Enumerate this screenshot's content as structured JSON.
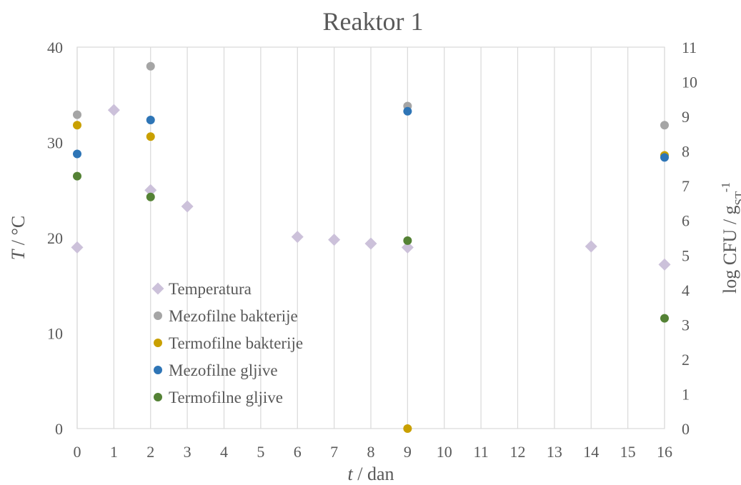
{
  "chart_data": {
    "type": "scatter",
    "title": "Reaktor 1",
    "xlabel": {
      "var": "t",
      "rest": " / dan"
    },
    "ylabel_left": {
      "var": "T",
      "rest": " / °C"
    },
    "ylabel_right": {
      "main": "log CFU / g",
      "sub": "ST",
      "sup": "-1"
    },
    "x_ticks": [
      0,
      1,
      2,
      3,
      4,
      5,
      6,
      7,
      8,
      9,
      10,
      11,
      12,
      13,
      14,
      15,
      16
    ],
    "xlim": [
      0,
      16
    ],
    "y_left_ticks": [
      0,
      10,
      20,
      30,
      40
    ],
    "ylim_left": [
      0,
      40
    ],
    "y_right_ticks": [
      0,
      1,
      2,
      3,
      4,
      5,
      6,
      7,
      8,
      9,
      10,
      11
    ],
    "ylim_right": [
      0,
      11
    ],
    "grid": "vertical",
    "legend_position": "center-left",
    "series": [
      {
        "name": "Temperatura",
        "axis": "left",
        "marker": "diamond",
        "color": "#ccc1da",
        "points": [
          [
            0,
            19.0
          ],
          [
            1,
            33.4
          ],
          [
            2,
            25.0
          ],
          [
            3,
            23.3
          ],
          [
            6,
            20.1
          ],
          [
            7,
            19.8
          ],
          [
            8,
            19.4
          ],
          [
            9,
            19.0
          ],
          [
            14,
            19.1
          ],
          [
            16,
            17.2
          ]
        ]
      },
      {
        "name": "Mezofilne bakterije",
        "axis": "right",
        "marker": "circle",
        "color": "#a5a5a5",
        "points": [
          [
            0,
            9.05
          ],
          [
            2,
            10.45
          ],
          [
            9,
            9.3
          ],
          [
            16,
            8.75
          ]
        ]
      },
      {
        "name": "Termofilne bakterije",
        "axis": "right",
        "marker": "circle",
        "color": "#c9a000",
        "points": [
          [
            0,
            8.75
          ],
          [
            2,
            8.42
          ],
          [
            9,
            0.0
          ],
          [
            16,
            7.88
          ]
        ]
      },
      {
        "name": "Mezofilne gljive",
        "axis": "right",
        "marker": "circle",
        "color": "#2e75b6",
        "points": [
          [
            0,
            7.92
          ],
          [
            2,
            8.9
          ],
          [
            9,
            9.15
          ],
          [
            16,
            7.82
          ]
        ]
      },
      {
        "name": "Termofilne gljive",
        "axis": "right",
        "marker": "circle",
        "color": "#548235",
        "points": [
          [
            0,
            7.28
          ],
          [
            2,
            6.68
          ],
          [
            9,
            5.42
          ],
          [
            16,
            3.18
          ]
        ]
      }
    ]
  }
}
